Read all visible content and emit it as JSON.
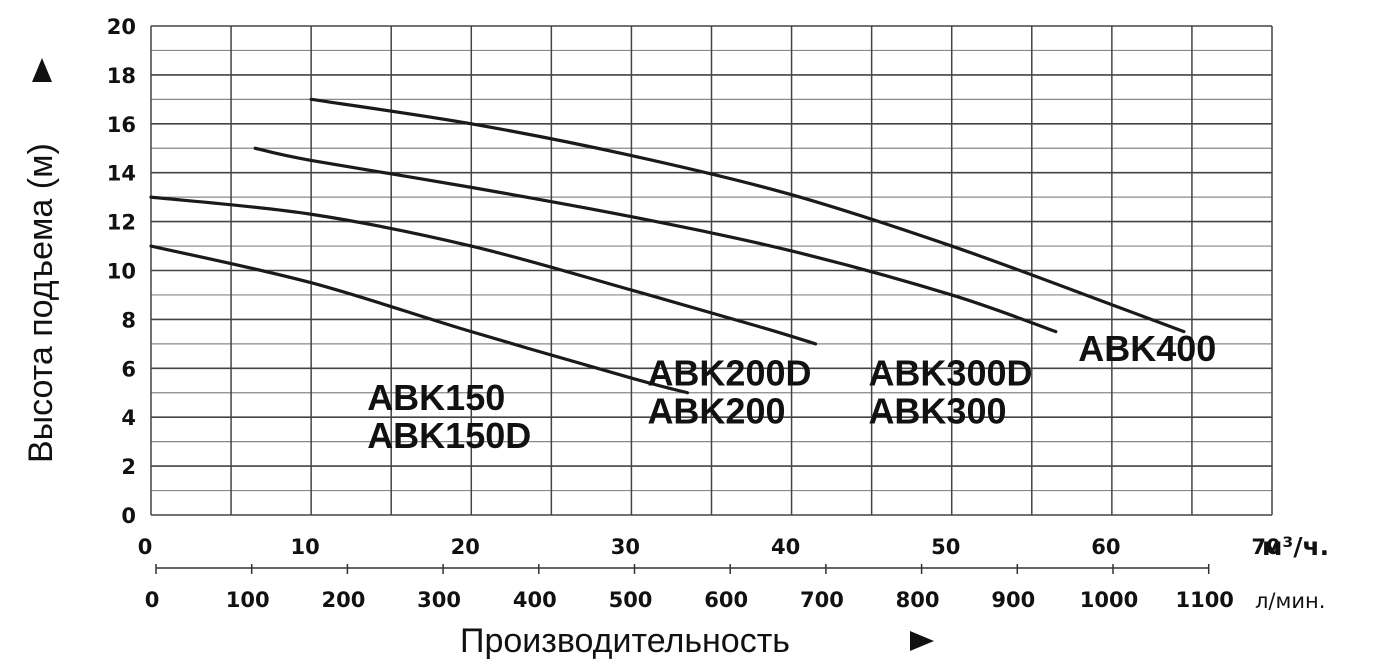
{
  "chart_data": {
    "type": "line",
    "title": "",
    "ylabel": "Высота подъема (м)",
    "xlabel": "Производительность",
    "x_unit": "м³/ч.",
    "x2_unit": "л/мин.",
    "ylim": [
      0,
      20
    ],
    "xlim": [
      0,
      70
    ],
    "y_ticks": [
      "0",
      "2",
      "4",
      "6",
      "8",
      "10",
      "12",
      "14",
      "16",
      "18",
      "20"
    ],
    "x_ticks": [
      "0",
      "10",
      "20",
      "30",
      "40",
      "50",
      "60",
      "70"
    ],
    "x2_ticks": [
      "0",
      "100",
      "200",
      "300",
      "400",
      "500",
      "600",
      "700",
      "800",
      "900",
      "1000",
      "1100"
    ],
    "grid": true,
    "series": [
      {
        "name": "ABK150 / ABK150D",
        "x": [
          0,
          10,
          20,
          30,
          33.5
        ],
        "y": [
          11,
          9.5,
          7.5,
          5.6,
          5
        ]
      },
      {
        "name": "ABK200 / ABK200D",
        "x": [
          0,
          10,
          20,
          30,
          38,
          41.5
        ],
        "y": [
          13,
          12.3,
          11,
          9.2,
          7.7,
          7
        ]
      },
      {
        "name": "ABK300 / ABK300D",
        "x": [
          6.5,
          10,
          20,
          30,
          40,
          50,
          56.5
        ],
        "y": [
          15,
          14.5,
          13.4,
          12.2,
          10.8,
          9,
          7.5
        ]
      },
      {
        "name": "ABK400",
        "x": [
          10,
          20,
          30,
          40,
          50,
          60,
          64.5
        ],
        "y": [
          17,
          16,
          14.7,
          13.1,
          11,
          8.6,
          7.5
        ]
      }
    ],
    "annotations": [
      {
        "lines": [
          "ABK150",
          "ABK150D"
        ],
        "x": 13.5,
        "y": 4.3
      },
      {
        "lines": [
          "ABK200D",
          "ABK200"
        ],
        "x": 31,
        "y": 5.3
      },
      {
        "lines": [
          "ABK300D",
          "ABK300"
        ],
        "x": 44.8,
        "y": 5.3
      },
      {
        "lines": [
          "ABK400"
        ],
        "x": 57.9,
        "y": 6.3
      }
    ]
  }
}
